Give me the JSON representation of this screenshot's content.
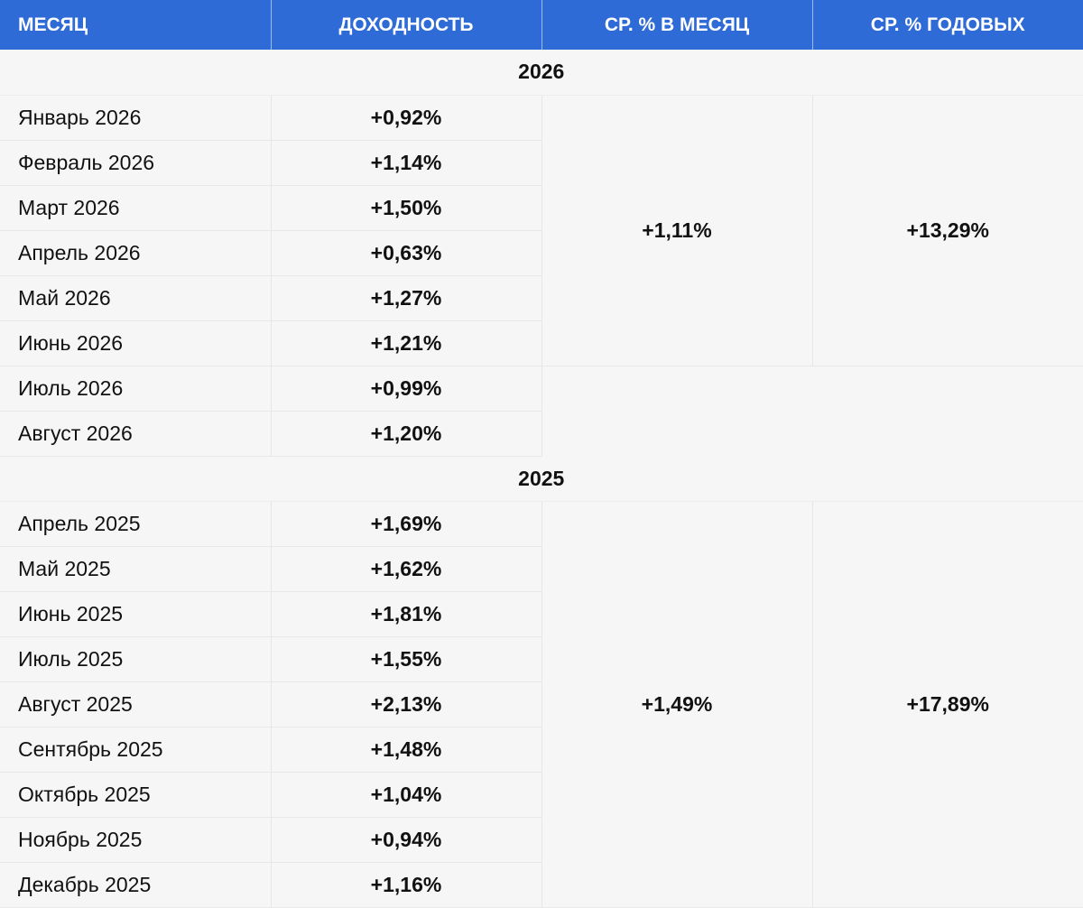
{
  "headers": {
    "month": "Месяц",
    "yield": "Доходность",
    "avg_month": "Ср. % в месяц",
    "avg_year": "Ср. % годовых"
  },
  "sections": [
    {
      "year": "2026",
      "rows": [
        {
          "month": "Январь 2026",
          "value": "+0,92%"
        },
        {
          "month": "Февраль 2026",
          "value": "+1,14%"
        },
        {
          "month": "Март 2026",
          "value": "+1,50%"
        },
        {
          "month": "Апрель 2026",
          "value": "+0,63%"
        },
        {
          "month": "Май 2026",
          "value": "+1,27%"
        },
        {
          "month": "Июнь 2026",
          "value": "+1,21%"
        },
        {
          "month": "Июль 2026",
          "value": "+0,99%"
        },
        {
          "month": "Август 2026",
          "value": "+1,20%"
        }
      ],
      "avg_month": "+1,11%",
      "avg_year": "+13,29%"
    },
    {
      "year": "2025",
      "rows": [
        {
          "month": "Апрель 2025",
          "value": "+1,69%"
        },
        {
          "month": "Май 2025",
          "value": "+1,62%"
        },
        {
          "month": "Июнь 2025",
          "value": "+1,81%"
        },
        {
          "month": "Июль 2025",
          "value": "+1,55%"
        },
        {
          "month": "Август 2025",
          "value": "+2,13%"
        },
        {
          "month": "Сентябрь 2025",
          "value": "+1,48%"
        },
        {
          "month": "Октябрь 2025",
          "value": "+1,04%"
        },
        {
          "month": "Ноябрь 2025",
          "value": "+0,94%"
        },
        {
          "month": "Декабрь 2025",
          "value": "+1,16%"
        }
      ],
      "avg_month": "+1,49%",
      "avg_year": "+17,89%"
    }
  ],
  "colors": {
    "header_bg": "#2f6bd6",
    "header_text": "#ffffff",
    "body_bg": "#f6f6f6"
  }
}
